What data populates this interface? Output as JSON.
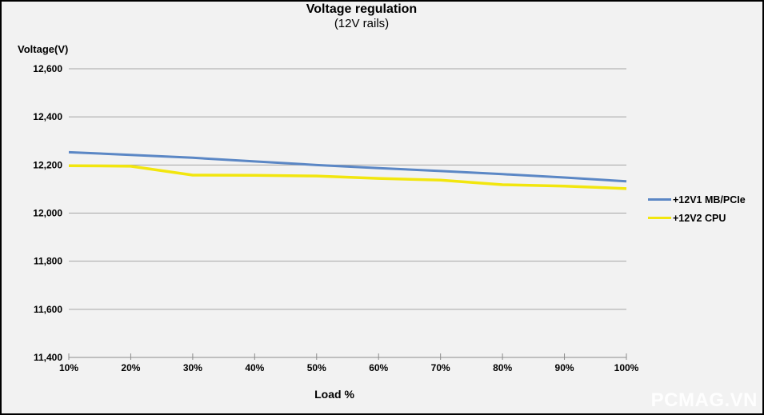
{
  "chart": {
    "title": "Voltage regulation",
    "subtitle": "(12V rails)",
    "y_axis_title": "Voltage(V)",
    "x_axis_title": "Load %"
  },
  "watermark": {
    "text": "PCMAG.VN"
  },
  "colors": {
    "background": "#f2f2f2",
    "gridline": "#a6a6a6",
    "axis": "#8c8c8c",
    "text": "#000000",
    "watermark": "#ffffff"
  },
  "chart_data": {
    "type": "line",
    "title": "Voltage regulation",
    "subtitle": "(12V rails)",
    "xlabel": "Load %",
    "ylabel": "Voltage(V)",
    "categories": [
      "10%",
      "20%",
      "30%",
      "40%",
      "50%",
      "60%",
      "70%",
      "80%",
      "90%",
      "100%"
    ],
    "series": [
      {
        "name": "+12V1 MB/PCIe",
        "color": "#5b87c5",
        "values": [
          12253,
          12242,
          12230,
          12215,
          12200,
          12187,
          12175,
          12162,
          12148,
          12132
        ]
      },
      {
        "name": "+12V2 CPU",
        "color": "#f2e60e",
        "values": [
          12197,
          12195,
          12158,
          12157,
          12154,
          12144,
          12137,
          12118,
          12112,
          12102
        ]
      }
    ],
    "ylim": [
      11400,
      12600
    ],
    "ytick_step": 200,
    "grid": true,
    "legend_position": "right"
  }
}
